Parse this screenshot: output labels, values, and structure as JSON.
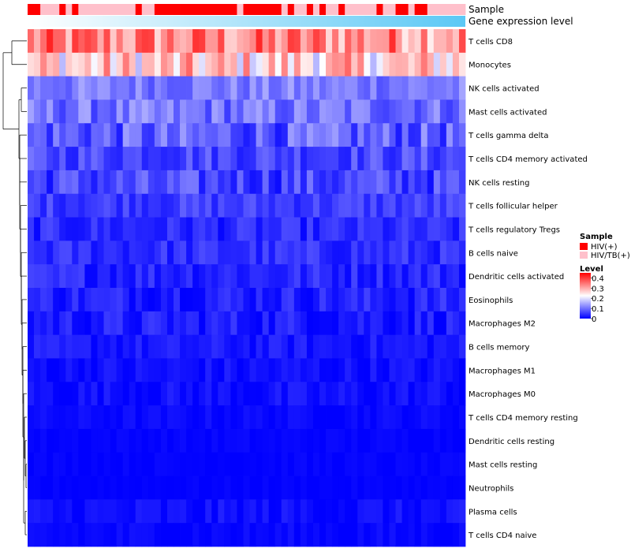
{
  "chart_data": {
    "type": "heatmap",
    "annotation_labels": {
      "sample": "Sample",
      "gene_expression": "Gene expression level"
    },
    "sample_groups": [
      "HIV(+)",
      "HIV/TB(+)"
    ],
    "sample_annotation": "HHTTTHTHTTTTTTTTTHTTHHHHHHHHHHHHHTHHHHHHTHTTHTHTTHTTTTTHTTHHTHHTTTTTT",
    "rows": [
      "T cells CD8",
      "Monocytes",
      "NK cells activated",
      "Mast cells activated",
      "T cells gamma delta",
      "T cells CD4 memory activated",
      "NK cells resting",
      "T cells follicular helper",
      "T cells regulatory  Tregs",
      "B cells naive",
      "Dendritic cells activated",
      "Eosinophils",
      "Macrophages M2",
      "B cells memory",
      "Macrophages M1",
      "Macrophages M0",
      "T cells CD4 memory resting",
      "Dendritic cells resting",
      "Mast cells resting",
      "Neutrophils",
      "Plasma cells",
      "T cells CD4 naive"
    ],
    "row_means": [
      0.33,
      0.26,
      0.11,
      0.1,
      0.08,
      0.065,
      0.06,
      0.055,
      0.035,
      0.04,
      0.035,
      0.03,
      0.025,
      0.02,
      0.012,
      0.012,
      0.008,
      0.004,
      0.003,
      0.002,
      0.01,
      0.006
    ],
    "row_spread": [
      0.09,
      0.1,
      0.04,
      0.05,
      0.06,
      0.04,
      0.05,
      0.03,
      0.03,
      0.03,
      0.03,
      0.03,
      0.03,
      0.02,
      0.02,
      0.02,
      0.01,
      0.006,
      0.006,
      0.005,
      0.02,
      0.012
    ],
    "n_columns": 69,
    "legend_sample_title": "Sample",
    "legend_level_title": "Level",
    "level_ticks": [
      "0",
      "0.1",
      "0.2",
      "0.3",
      "0.4"
    ],
    "level_range": [
      0,
      0.45
    ],
    "colors": {
      "low": "#0000ff",
      "mid": "#ffffff",
      "high": "#ff0000",
      "hiv": "#ff0000",
      "hivtb": "#ffc0cb",
      "gene_bar_left": "#ffffff",
      "gene_bar_right": "#5bc8f5"
    }
  }
}
